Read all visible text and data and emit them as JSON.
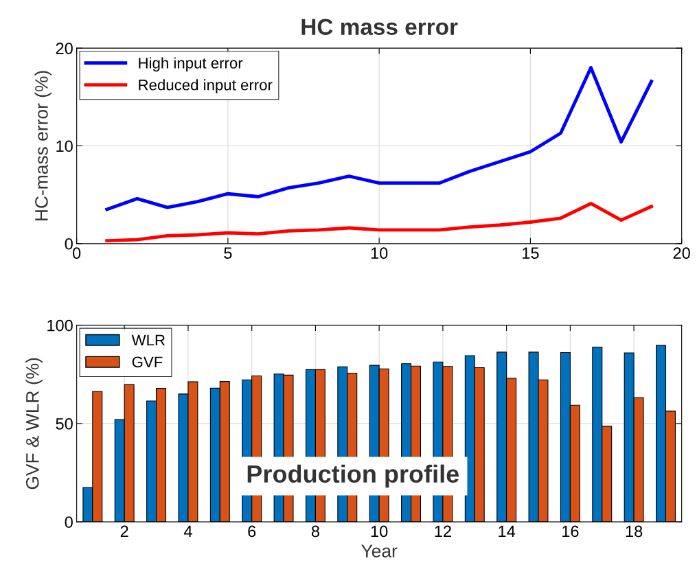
{
  "chart_data": [
    {
      "type": "line",
      "title": "HC mass error",
      "ylabel": "HC-mass error (%)",
      "x": [
        1,
        2,
        3,
        4,
        5,
        6,
        7,
        8,
        9,
        10,
        11,
        12,
        13,
        14,
        15,
        16,
        17,
        18,
        19
      ],
      "series": [
        {
          "name": "High input error",
          "color": "#0000ff",
          "values": [
            3.5,
            4.6,
            3.7,
            4.3,
            5.1,
            4.8,
            5.7,
            6.2,
            6.9,
            6.2,
            6.2,
            6.2,
            7.4,
            8.4,
            9.4,
            11.3,
            18.0,
            10.4,
            16.6
          ]
        },
        {
          "name": "Reduced input error",
          "color": "#ff0000",
          "values": [
            0.3,
            0.4,
            0.8,
            0.9,
            1.1,
            1.0,
            1.3,
            1.4,
            1.6,
            1.4,
            1.4,
            1.4,
            1.7,
            1.9,
            2.2,
            2.6,
            4.1,
            2.4,
            3.8
          ]
        }
      ],
      "xlim": [
        0,
        20
      ],
      "xticks": [
        0,
        5,
        10,
        15,
        20
      ],
      "ylim": [
        0,
        20
      ],
      "yticks": [
        0,
        10,
        20
      ],
      "grid": true,
      "legend": "top left",
      "marker": "none",
      "line_style": "solid"
    },
    {
      "type": "bar",
      "xlabel": "Year",
      "ylabel": "GVF & WLR (%)",
      "x": [
        1,
        2,
        3,
        4,
        5,
        6,
        7,
        8,
        9,
        10,
        11,
        12,
        13,
        14,
        15,
        16,
        17,
        18,
        19
      ],
      "series": [
        {
          "name": "WLR",
          "color": "#0072bd",
          "values": [
            17.5,
            52,
            61.5,
            65,
            68,
            72.2,
            75.2,
            77.4,
            78.8,
            79.6,
            80.4,
            81.3,
            84.5,
            86.3,
            86.3,
            86.1,
            88.9,
            85.9,
            89.7
          ]
        },
        {
          "name": "GVF",
          "color": "#d95319",
          "values": [
            66.3,
            69.8,
            67.9,
            71.2,
            71.4,
            74.2,
            74.6,
            77.4,
            75.6,
            77.8,
            79.2,
            79.0,
            78.4,
            73,
            72.2,
            59.3,
            48.6,
            63.1,
            56.3
          ]
        }
      ],
      "annotations": [
        "Production profile"
      ],
      "xlim": [
        0.5,
        19.5
      ],
      "xticks": [
        2,
        4,
        6,
        8,
        10,
        12,
        14,
        16,
        18
      ],
      "ylim": [
        0,
        100
      ],
      "yticks": [
        0,
        50,
        100
      ],
      "grid": true,
      "legend": "top left"
    }
  ]
}
